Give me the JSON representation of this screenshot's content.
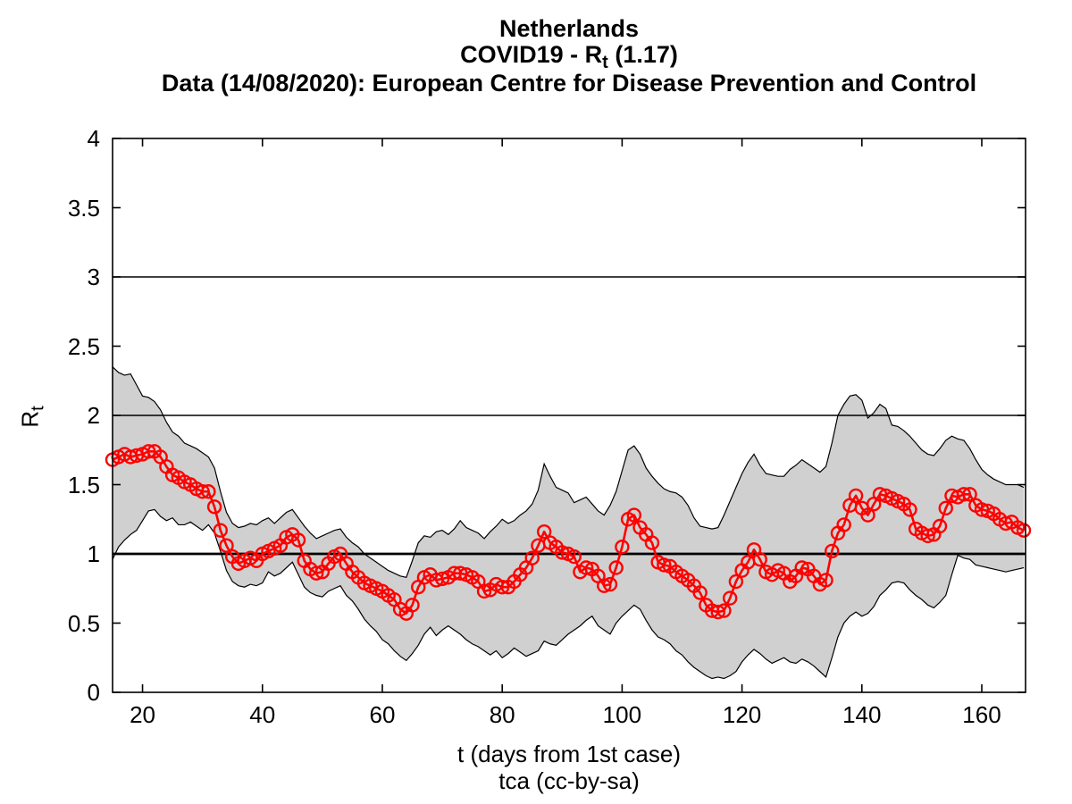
{
  "title": {
    "line1": "Netherlands",
    "line2_prefix": "COVID19 - R",
    "line2_sub": "t",
    "line2_suffix": " (1.17)",
    "line3": "Data (14/08/2020): European Centre for Disease Prevention and Control"
  },
  "axis_labels": {
    "xlabel": "t (days from 1st case)",
    "xlabel2": "tca (cc-by-sa)",
    "ylabel_prefix": "R",
    "ylabel_sub": "t"
  },
  "colors": {
    "line": "#ff0000",
    "band_fill": "#d0d0d0",
    "band_edge": "#000000",
    "axis": "#000000",
    "background": "#ffffff"
  },
  "chart_data": {
    "type": "line",
    "title": "Netherlands COVID19 - Rt (1.17)",
    "xlabel": "t (days from 1st case)",
    "ylabel": "Rt",
    "xlim": [
      15,
      167.3
    ],
    "ylim": [
      0,
      4
    ],
    "x_ticks": [
      20,
      40,
      60,
      80,
      100,
      120,
      140,
      160
    ],
    "y_ticks": [
      0,
      0.5,
      1,
      1.5,
      2,
      2.5,
      3,
      3.5,
      4
    ],
    "reference_lines": [
      1,
      2,
      3
    ],
    "grid": false,
    "legend": "none",
    "marker": "circle",
    "x": [
      15,
      16,
      17,
      18,
      19,
      20,
      21,
      22,
      23,
      24,
      25,
      26,
      27,
      28,
      29,
      30,
      31,
      32,
      33,
      34,
      35,
      36,
      37,
      38,
      39,
      40,
      41,
      42,
      43,
      44,
      45,
      46,
      47,
      48,
      49,
      50,
      51,
      52,
      53,
      54,
      55,
      56,
      57,
      58,
      59,
      60,
      61,
      62,
      63,
      64,
      65,
      66,
      67,
      68,
      69,
      70,
      71,
      72,
      73,
      74,
      75,
      76,
      77,
      78,
      79,
      80,
      81,
      82,
      83,
      84,
      85,
      86,
      87,
      88,
      89,
      90,
      91,
      92,
      93,
      94,
      95,
      96,
      97,
      98,
      99,
      100,
      101,
      102,
      103,
      104,
      105,
      106,
      107,
      108,
      109,
      110,
      111,
      112,
      113,
      114,
      115,
      116,
      117,
      118,
      119,
      120,
      121,
      122,
      123,
      124,
      125,
      126,
      127,
      128,
      129,
      130,
      131,
      132,
      133,
      134,
      135,
      136,
      137,
      138,
      139,
      140,
      141,
      142,
      143,
      144,
      145,
      146,
      147,
      148,
      149,
      150,
      151,
      152,
      153,
      154,
      155,
      156,
      157,
      158,
      159,
      160,
      161,
      162,
      163,
      164,
      165,
      166,
      167
    ],
    "series": [
      {
        "name": "Rt estimate",
        "color": "#ff0000",
        "values": [
          1.68,
          1.7,
          1.72,
          1.7,
          1.71,
          1.72,
          1.74,
          1.74,
          1.7,
          1.63,
          1.57,
          1.55,
          1.52,
          1.5,
          1.47,
          1.45,
          1.45,
          1.34,
          1.17,
          1.06,
          0.98,
          0.93,
          0.95,
          0.97,
          0.95,
          1.0,
          1.02,
          1.04,
          1.06,
          1.12,
          1.14,
          1.1,
          0.95,
          0.89,
          0.86,
          0.87,
          0.93,
          0.98,
          1.0,
          0.93,
          0.87,
          0.83,
          0.79,
          0.77,
          0.75,
          0.73,
          0.7,
          0.67,
          0.6,
          0.57,
          0.63,
          0.76,
          0.83,
          0.85,
          0.81,
          0.82,
          0.83,
          0.86,
          0.86,
          0.85,
          0.83,
          0.8,
          0.73,
          0.74,
          0.78,
          0.76,
          0.76,
          0.8,
          0.85,
          0.9,
          0.97,
          1.06,
          1.16,
          1.08,
          1.05,
          1.01,
          1.0,
          0.98,
          0.87,
          0.9,
          0.89,
          0.84,
          0.77,
          0.78,
          0.9,
          1.05,
          1.25,
          1.28,
          1.19,
          1.14,
          1.08,
          0.94,
          0.92,
          0.91,
          0.87,
          0.84,
          0.81,
          0.77,
          0.72,
          0.63,
          0.59,
          0.58,
          0.59,
          0.68,
          0.8,
          0.88,
          0.94,
          1.03,
          0.96,
          0.87,
          0.85,
          0.88,
          0.86,
          0.8,
          0.84,
          0.9,
          0.89,
          0.84,
          0.78,
          0.81,
          1.02,
          1.15,
          1.21,
          1.35,
          1.42,
          1.33,
          1.28,
          1.36,
          1.43,
          1.42,
          1.4,
          1.38,
          1.36,
          1.32,
          1.18,
          1.15,
          1.13,
          1.14,
          1.2,
          1.33,
          1.42,
          1.41,
          1.43,
          1.43,
          1.35,
          1.32,
          1.31,
          1.29,
          1.25,
          1.22,
          1.23,
          1.19,
          1.17
        ]
      },
      {
        "name": "upper confidence bound",
        "color": "#000000",
        "values": [
          2.35,
          2.31,
          2.29,
          2.3,
          2.22,
          2.14,
          2.13,
          2.1,
          2.04,
          1.95,
          1.88,
          1.85,
          1.8,
          1.78,
          1.76,
          1.73,
          1.7,
          1.62,
          1.45,
          1.3,
          1.22,
          1.19,
          1.2,
          1.22,
          1.21,
          1.24,
          1.26,
          1.22,
          1.26,
          1.3,
          1.32,
          1.26,
          1.2,
          1.15,
          1.11,
          1.13,
          1.15,
          1.17,
          1.18,
          1.12,
          1.08,
          1.05,
          1.0,
          0.97,
          0.94,
          0.91,
          0.88,
          0.86,
          0.84,
          0.83,
          0.95,
          1.08,
          1.13,
          1.12,
          1.16,
          1.17,
          1.14,
          1.18,
          1.24,
          1.19,
          1.17,
          1.15,
          1.11,
          1.16,
          1.2,
          1.25,
          1.22,
          1.24,
          1.28,
          1.31,
          1.36,
          1.46,
          1.65,
          1.56,
          1.48,
          1.46,
          1.44,
          1.37,
          1.39,
          1.41,
          1.36,
          1.31,
          1.28,
          1.35,
          1.45,
          1.6,
          1.75,
          1.78,
          1.72,
          1.62,
          1.56,
          1.51,
          1.47,
          1.45,
          1.44,
          1.41,
          1.35,
          1.26,
          1.2,
          1.19,
          1.18,
          1.19,
          1.28,
          1.38,
          1.48,
          1.58,
          1.66,
          1.72,
          1.64,
          1.58,
          1.57,
          1.56,
          1.56,
          1.61,
          1.64,
          1.68,
          1.65,
          1.62,
          1.59,
          1.63,
          1.8,
          2.0,
          2.08,
          2.14,
          2.15,
          2.11,
          1.98,
          2.02,
          2.08,
          2.05,
          1.93,
          1.92,
          1.89,
          1.85,
          1.8,
          1.75,
          1.72,
          1.71,
          1.76,
          1.82,
          1.85,
          1.83,
          1.82,
          1.76,
          1.68,
          1.61,
          1.57,
          1.54,
          1.52,
          1.5,
          1.5,
          1.5,
          1.48
        ]
      },
      {
        "name": "lower confidence bound",
        "color": "#000000",
        "values": [
          0.96,
          1.05,
          1.1,
          1.14,
          1.17,
          1.24,
          1.31,
          1.32,
          1.27,
          1.24,
          1.26,
          1.21,
          1.21,
          1.23,
          1.2,
          1.17,
          1.21,
          1.15,
          1.02,
          0.88,
          0.8,
          0.77,
          0.76,
          0.78,
          0.77,
          0.79,
          0.87,
          0.84,
          0.86,
          0.9,
          0.94,
          0.85,
          0.76,
          0.72,
          0.7,
          0.69,
          0.73,
          0.75,
          0.77,
          0.7,
          0.66,
          0.6,
          0.53,
          0.48,
          0.44,
          0.38,
          0.35,
          0.3,
          0.26,
          0.23,
          0.28,
          0.34,
          0.42,
          0.47,
          0.41,
          0.45,
          0.48,
          0.45,
          0.42,
          0.38,
          0.35,
          0.33,
          0.3,
          0.27,
          0.3,
          0.25,
          0.28,
          0.32,
          0.29,
          0.26,
          0.28,
          0.3,
          0.37,
          0.35,
          0.34,
          0.38,
          0.42,
          0.45,
          0.48,
          0.52,
          0.55,
          0.48,
          0.45,
          0.42,
          0.5,
          0.55,
          0.59,
          0.63,
          0.6,
          0.52,
          0.45,
          0.4,
          0.38,
          0.35,
          0.3,
          0.27,
          0.22,
          0.18,
          0.15,
          0.12,
          0.1,
          0.11,
          0.1,
          0.12,
          0.15,
          0.22,
          0.27,
          0.31,
          0.28,
          0.24,
          0.21,
          0.23,
          0.25,
          0.22,
          0.21,
          0.24,
          0.22,
          0.19,
          0.15,
          0.11,
          0.25,
          0.4,
          0.5,
          0.55,
          0.58,
          0.55,
          0.57,
          0.62,
          0.7,
          0.74,
          0.79,
          0.8,
          0.79,
          0.74,
          0.7,
          0.67,
          0.63,
          0.61,
          0.65,
          0.7,
          0.85,
          0.99,
          0.97,
          0.96,
          0.92,
          0.91,
          0.9,
          0.89,
          0.88,
          0.87,
          0.88,
          0.89,
          0.9
        ]
      }
    ]
  }
}
